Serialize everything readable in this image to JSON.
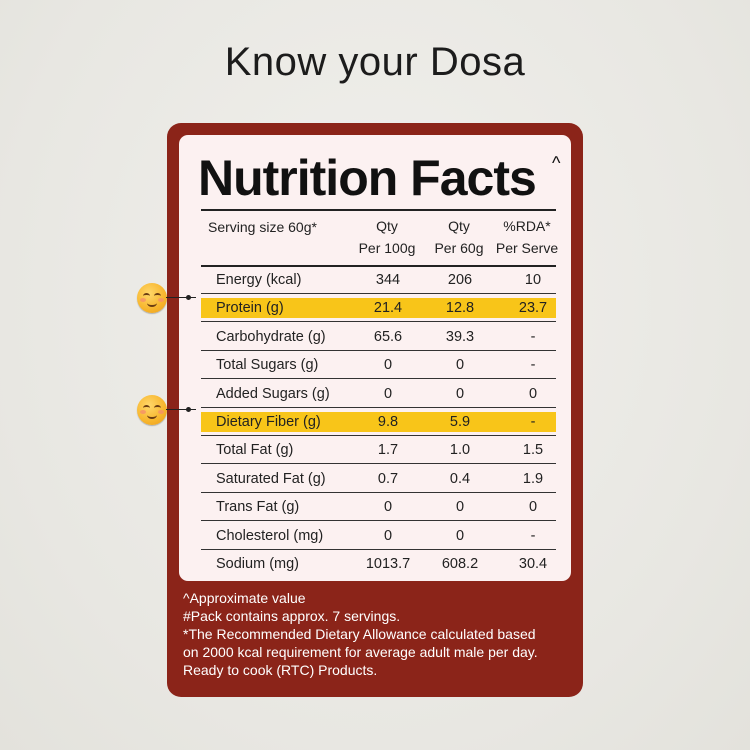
{
  "page": {
    "title": "Know your Dosa"
  },
  "label": {
    "title": "Nutrition Facts",
    "title_mark": "^",
    "serving": "Serving size 60g*",
    "columns": [
      {
        "line1": "Qty",
        "line2": "Per 100g"
      },
      {
        "line1": "Qty",
        "line2": "Per 60g"
      },
      {
        "line1": "%RDA*",
        "line2": "Per Serve"
      }
    ],
    "rows": [
      {
        "name": "Energy (kcal)",
        "per100": "344",
        "per60": "206",
        "rda": "10",
        "highlight": false
      },
      {
        "name": "Protein (g)",
        "per100": "21.4",
        "per60": "12.8",
        "rda": "23.7",
        "highlight": true
      },
      {
        "name": "Carbohydrate (g)",
        "per100": "65.6",
        "per60": "39.3",
        "rda": "-",
        "highlight": false
      },
      {
        "name": "Total Sugars (g)",
        "per100": "0",
        "per60": "0",
        "rda": "-",
        "highlight": false
      },
      {
        "name": "Added Sugars (g)",
        "per100": "0",
        "per60": "0",
        "rda": "0",
        "highlight": false
      },
      {
        "name": "Dietary Fiber (g)",
        "per100": "9.8",
        "per60": "5.9",
        "rda": "-",
        "highlight": true
      },
      {
        "name": "Total Fat (g)",
        "per100": "1.7",
        "per60": "1.0",
        "rda": "1.5",
        "highlight": false
      },
      {
        "name": "Saturated Fat (g)",
        "per100": "0.7",
        "per60": "0.4",
        "rda": "1.9",
        "highlight": false
      },
      {
        "name": "Trans Fat (g)",
        "per100": "0",
        "per60": "0",
        "rda": "0",
        "highlight": false
      },
      {
        "name": "Cholesterol (mg)",
        "per100": "0",
        "per60": "0",
        "rda": "-",
        "highlight": false
      },
      {
        "name": "Sodium (mg)",
        "per100": "1013.7",
        "per60": "608.2",
        "rda": "30.4",
        "highlight": false
      }
    ],
    "footnotes": [
      "^Approximate value",
      "#Pack contains approx. 7 servings.",
      "*The Recommended Dietary Allowance calculated based",
      "on 2000 kcal requirement for average adult male per day.",
      "Ready to cook (RTC) Products."
    ]
  },
  "icons": {
    "marker": "smiling-face-icon"
  },
  "colors": {
    "card": "#8b2419",
    "highlight": "#f8c519",
    "panel": "#fcf1f1"
  }
}
